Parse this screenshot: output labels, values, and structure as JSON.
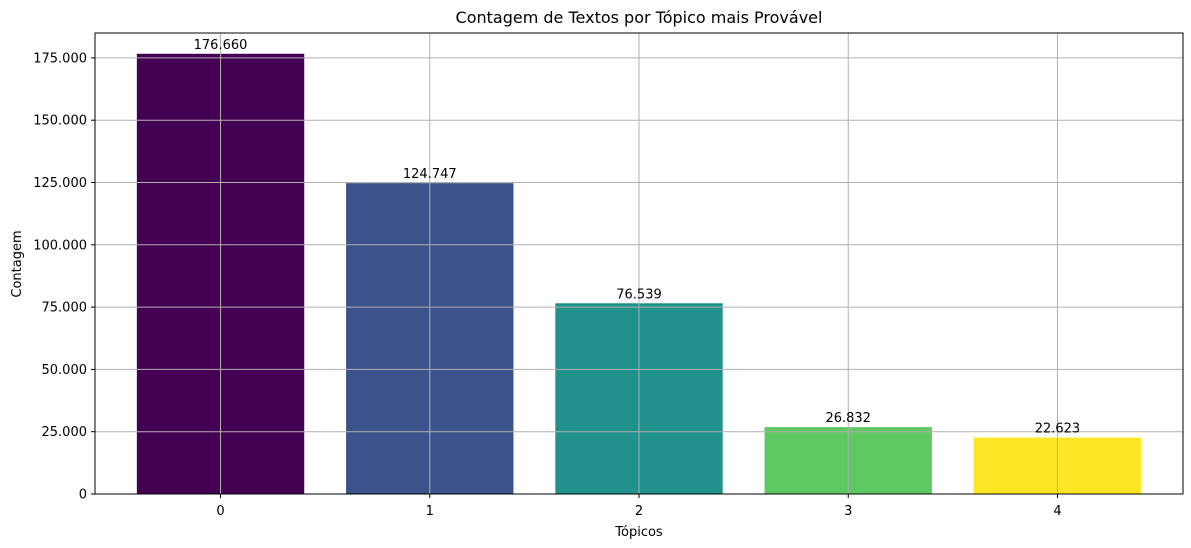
{
  "chart_data": {
    "type": "bar",
    "title": "Contagem de Textos por Tópico mais Provável",
    "xlabel": "Tópicos",
    "ylabel": "Contagem",
    "categories": [
      "0",
      "1",
      "2",
      "3",
      "4"
    ],
    "values": [
      176660,
      124747,
      76539,
      26832,
      22623
    ],
    "value_labels": [
      "176.660",
      "124.747",
      "76.539",
      "26.832",
      "22.623"
    ],
    "colors": [
      "#440154",
      "#3b528b",
      "#21918c",
      "#5ec962",
      "#fde725"
    ],
    "ylim": [
      0,
      185000
    ],
    "yticks": [
      0,
      25000,
      50000,
      75000,
      100000,
      125000,
      150000,
      175000
    ],
    "ytick_labels": [
      "0",
      "25.000",
      "50.000",
      "75.000",
      "100.000",
      "125.000",
      "150.000",
      "175.000"
    ],
    "grid": true
  }
}
